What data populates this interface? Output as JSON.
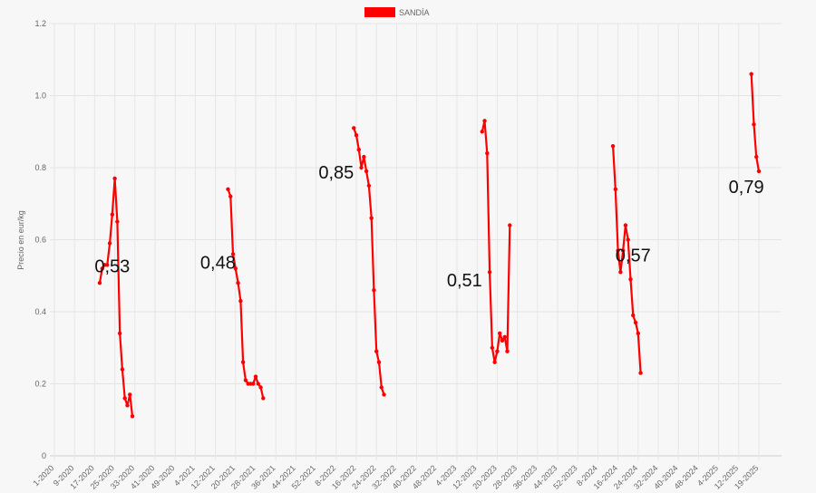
{
  "chart_data": {
    "type": "line",
    "title": "",
    "ylabel": "Precio en eur/kg",
    "xlabel": "",
    "ylim": [
      0,
      1.2
    ],
    "yticks": [
      "0",
      "0.2",
      "0.4",
      "0.6",
      "0.8",
      "1.0",
      "1.2"
    ],
    "grid": true,
    "legend_position": "top-center",
    "x_range": [
      1,
      290
    ],
    "x_ticks": [
      {
        "x": 1,
        "label": "1-2020"
      },
      {
        "x": 9,
        "label": "9-2020"
      },
      {
        "x": 17,
        "label": "17-2020"
      },
      {
        "x": 25,
        "label": "25-2020"
      },
      {
        "x": 33,
        "label": "33-2020"
      },
      {
        "x": 41,
        "label": "41-2020"
      },
      {
        "x": 49,
        "label": "49-2020"
      },
      {
        "x": 57,
        "label": "4-2021"
      },
      {
        "x": 65,
        "label": "12-2021"
      },
      {
        "x": 73,
        "label": "20-2021"
      },
      {
        "x": 81,
        "label": "28-2021"
      },
      {
        "x": 89,
        "label": "36-2021"
      },
      {
        "x": 97,
        "label": "44-2021"
      },
      {
        "x": 105,
        "label": "52-2021"
      },
      {
        "x": 113,
        "label": "8-2022"
      },
      {
        "x": 121,
        "label": "16-2022"
      },
      {
        "x": 129,
        "label": "24-2022"
      },
      {
        "x": 137,
        "label": "32-2022"
      },
      {
        "x": 145,
        "label": "40-2022"
      },
      {
        "x": 153,
        "label": "48-2022"
      },
      {
        "x": 161,
        "label": "4-2023"
      },
      {
        "x": 169,
        "label": "12-2023"
      },
      {
        "x": 177,
        "label": "20-2023"
      },
      {
        "x": 185,
        "label": "28-2023"
      },
      {
        "x": 193,
        "label": "36-2023"
      },
      {
        "x": 201,
        "label": "44-2023"
      },
      {
        "x": 209,
        "label": "52-2023"
      },
      {
        "x": 217,
        "label": "8-2024"
      },
      {
        "x": 225,
        "label": "16-2024"
      },
      {
        "x": 233,
        "label": "24-2024"
      },
      {
        "x": 241,
        "label": "32-2024"
      },
      {
        "x": 249,
        "label": "40-2024"
      },
      {
        "x": 257,
        "label": "48-2024"
      },
      {
        "x": 265,
        "label": "4-2025"
      },
      {
        "x": 273,
        "label": "12-2025"
      },
      {
        "x": 281,
        "label": "19-2025"
      }
    ],
    "series": [
      {
        "name": "SANDÍA",
        "color": "#ff0000",
        "segments": [
          [
            [
              19,
              0.48
            ],
            [
              20,
              0.52
            ],
            [
              21,
              0.53
            ],
            [
              22,
              0.53
            ],
            [
              23,
              0.59
            ],
            [
              24,
              0.67
            ],
            [
              25,
              0.77
            ],
            [
              26,
              0.65
            ],
            [
              27,
              0.34
            ],
            [
              28,
              0.24
            ],
            [
              29,
              0.16
            ],
            [
              30,
              0.14
            ],
            [
              31,
              0.17
            ],
            [
              32,
              0.11
            ]
          ],
          [
            [
              70,
              0.74
            ],
            [
              71,
              0.72
            ],
            [
              72,
              0.56
            ],
            [
              73,
              0.52
            ],
            [
              74,
              0.48
            ],
            [
              75,
              0.43
            ],
            [
              76,
              0.26
            ],
            [
              77,
              0.21
            ],
            [
              78,
              0.2
            ],
            [
              79,
              0.2
            ],
            [
              80,
              0.2
            ],
            [
              81,
              0.22
            ],
            [
              82,
              0.2
            ],
            [
              83,
              0.19
            ],
            [
              84,
              0.16
            ]
          ],
          [
            [
              120,
              0.91
            ],
            [
              121,
              0.89
            ],
            [
              122,
              0.85
            ],
            [
              123,
              0.8
            ],
            [
              124,
              0.83
            ],
            [
              125,
              0.79
            ],
            [
              126,
              0.75
            ],
            [
              127,
              0.66
            ],
            [
              128,
              0.46
            ],
            [
              129,
              0.29
            ],
            [
              130,
              0.26
            ],
            [
              131,
              0.19
            ],
            [
              132,
              0.17
            ]
          ],
          [
            [
              171,
              0.9
            ],
            [
              172,
              0.93
            ],
            [
              173,
              0.84
            ],
            [
              174,
              0.51
            ],
            [
              175,
              0.3
            ],
            [
              176,
              0.26
            ],
            [
              177,
              0.29
            ],
            [
              178,
              0.34
            ],
            [
              179,
              0.32
            ],
            [
              180,
              0.33
            ],
            [
              181,
              0.29
            ],
            [
              182,
              0.64
            ]
          ],
          [
            [
              223,
              0.86
            ],
            [
              224,
              0.74
            ],
            [
              225,
              0.57
            ],
            [
              226,
              0.51
            ],
            [
              227,
              0.57
            ],
            [
              228,
              0.64
            ],
            [
              229,
              0.6
            ],
            [
              230,
              0.49
            ],
            [
              231,
              0.39
            ],
            [
              232,
              0.37
            ],
            [
              233,
              0.34
            ],
            [
              234,
              0.23
            ]
          ],
          [
            [
              278,
              1.06
            ],
            [
              279,
              0.92
            ],
            [
              280,
              0.83
            ],
            [
              281,
              0.79
            ]
          ]
        ]
      }
    ],
    "annotations": [
      {
        "text": "0,53",
        "x": 24,
        "y": 0.51
      },
      {
        "text": "0,48",
        "x": 66,
        "y": 0.52
      },
      {
        "text": "0,85",
        "x": 113,
        "y": 0.77
      },
      {
        "text": "0,51",
        "x": 164,
        "y": 0.47
      },
      {
        "text": "0,57",
        "x": 231,
        "y": 0.54
      },
      {
        "text": "0,79",
        "x": 276,
        "y": 0.73
      }
    ]
  }
}
